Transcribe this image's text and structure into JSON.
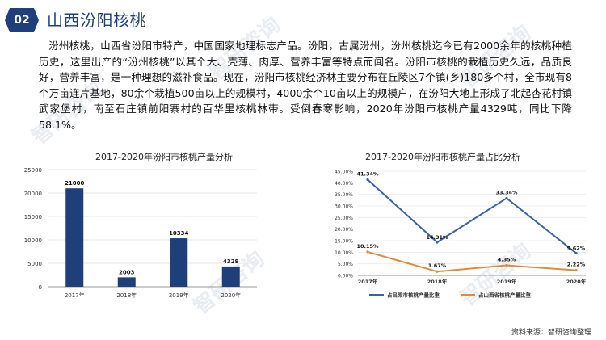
{
  "header": {
    "badge": "02",
    "title": "山西汾阳核桃"
  },
  "paragraph": "汾州核桃，山西省汾阳市特产，中国国家地理标志产品。汾阳，古属汾州，汾州核桃迄今已有2000余年的核桃种植历史，这里出产的“汾州核桃”以其个大、壳薄、肉厚、营养丰富等特点而闻名。汾阳市核桃的栽植历史久远，品质良好，营养丰富，是一种理想的滋补食品。现在，汾阳市核桃经济林主要分布在丘陵区7个镇(乡)180多个村，全市现有8个万亩连片基地，80余个栽植500亩以上的规模村，4000余个10亩以上的规模户，在汾阳大地上形成了北起杏花村镇武家堡村，南至石庄镇前阳寨村的百华里核桃林带。受倒春寒影响，2020年汾阳市核桃产量4329吨，同比下降58.1%。",
  "source": "资料来源：智研咨询整理",
  "watermark": "智研咨询",
  "colors": {
    "brand": "#1f3f7a",
    "bar": "#1f3f7a",
    "line_fenyang": "#3b62a8",
    "line_shanxi": "#e08a3c"
  },
  "chart_data": [
    {
      "type": "bar",
      "title": "2017-2020年汾阳市核桃产量分析",
      "categories": [
        "2017年",
        "2018年",
        "2019年",
        "2020年"
      ],
      "values": [
        21000,
        2003,
        10334,
        4329
      ],
      "value_labels": [
        "21000",
        "2003",
        "10334",
        "4329"
      ],
      "ylim": [
        0,
        25000
      ],
      "yticks": [
        0,
        5000,
        10000,
        15000,
        20000,
        25000
      ],
      "ytick_labels": [
        "0",
        "5000",
        "10000",
        "15000",
        "20000",
        "25000"
      ],
      "grid": true
    },
    {
      "type": "line",
      "title": "2017-2020年汾阳市核桃产量占比分析",
      "categories": [
        "2017年",
        "2018年",
        "2019年",
        "2020年"
      ],
      "series": [
        {
          "name": "占吕梁市核桃产量比重",
          "values": [
            41.34,
            14.31,
            33.34,
            9.62
          ],
          "labels": [
            "41.34%",
            "14.31%",
            "33.34%",
            "9.62%"
          ],
          "color": "#3b62a8"
        },
        {
          "name": "占山西省核桃产量比重",
          "values": [
            10.15,
            1.67,
            4.35,
            2.22
          ],
          "labels": [
            "10.15%",
            "1.67%",
            "4.35%",
            "2.22%"
          ],
          "color": "#e08a3c"
        }
      ],
      "ylim": [
        0,
        45
      ],
      "yticks": [
        0,
        5,
        10,
        15,
        20,
        25,
        30,
        35,
        40,
        45
      ],
      "ytick_labels": [
        "0.00%",
        "5.00%",
        "10.00%",
        "15.00%",
        "20.00%",
        "25.00%",
        "30.00%",
        "35.00%",
        "40.00%",
        "45.00%"
      ],
      "legend": "bottom",
      "grid": true
    }
  ]
}
